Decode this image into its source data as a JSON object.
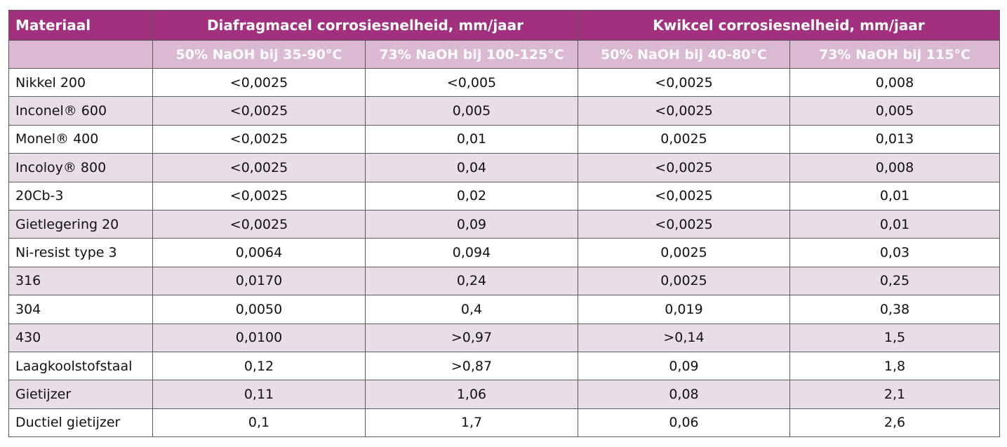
{
  "table": {
    "header": {
      "material": "Materiaal",
      "group_diaphragm": "Diafragmacel corrosiesnelheid, mm/jaar",
      "group_mercury": "Kwikcel corrosiesnelheid, mm/jaar",
      "sub": [
        "50% NaOH bij 35-90°C",
        "73% NaOH bij 100-125°C",
        "50% NaOH bij 40-80°C",
        "73% NaOH bij 115°C"
      ]
    },
    "rows": [
      {
        "material": "Nikkel 200",
        "d50": "<0,0025",
        "d73": "<0,005",
        "m50": "<0,0025",
        "m73": "0,008"
      },
      {
        "material": "Inconel® 600",
        "d50": "<0,0025",
        "d73": "0,005",
        "m50": "<0,0025",
        "m73": "0,005"
      },
      {
        "material": "Monel® 400",
        "d50": "<0,0025",
        "d73": "0,01",
        "m50": "0,0025",
        "m73": "0,013"
      },
      {
        "material": "Incoloy® 800",
        "d50": "<0,0025",
        "d73": "0,04",
        "m50": "<0,0025",
        "m73": "0,008"
      },
      {
        "material": "20Cb-3",
        "d50": "<0,0025",
        "d73": "0,02",
        "m50": "<0,0025",
        "m73": "0,01"
      },
      {
        "material": "Gietlegering 20",
        "d50": "<0,0025",
        "d73": "0,09",
        "m50": "<0,0025",
        "m73": "0,01"
      },
      {
        "material": "Ni-resist type 3",
        "d50": "0,0064",
        "d73": "0,094",
        "m50": "0,0025",
        "m73": "0,03"
      },
      {
        "material": "316",
        "d50": "0,0170",
        "d73": "0,24",
        "m50": "0,0025",
        "m73": "0,25"
      },
      {
        "material": "304",
        "d50": "0,0050",
        "d73": "0,4",
        "m50": "0,019",
        "m73": "0,38"
      },
      {
        "material": "430",
        "d50": "0,0100",
        "d73": ">0,97",
        "m50": ">0,14",
        "m73": "1,5"
      },
      {
        "material": "Laagkoolstofstaal",
        "d50": "0,12",
        "d73": ">0,87",
        "m50": "0,09",
        "m73": "1,8"
      },
      {
        "material": "Gietijzer",
        "d50": "0,11",
        "d73": "1,06",
        "m50": "0,08",
        "m73": "2,1"
      },
      {
        "material": "Ductiel gietijzer",
        "d50": "0,1",
        "d73": "1,7",
        "m50": "0,06",
        "m73": "2,6"
      }
    ]
  },
  "colors": {
    "header_bg": "#a3307f",
    "subheader_bg": "#dcb9d2",
    "alt_row_bg": "#e9dde8"
  }
}
